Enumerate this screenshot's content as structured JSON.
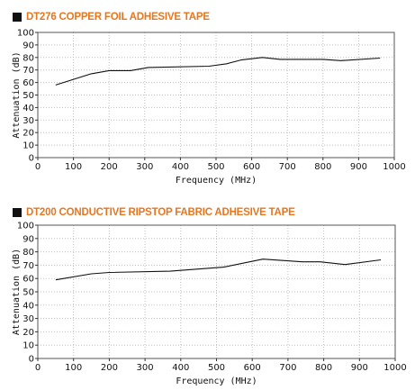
{
  "chart_data": [
    {
      "type": "line",
      "title": "DT276 COPPER FOIL ADHESIVE TAPE",
      "xlabel": "Frequency (MHz)",
      "ylabel": "Attenuation (dB)",
      "xlim": [
        0,
        1000
      ],
      "ylim": [
        0,
        100
      ],
      "xticks": [
        0,
        100,
        200,
        300,
        400,
        500,
        600,
        700,
        800,
        900,
        1000
      ],
      "yticks": [
        0,
        10,
        20,
        30,
        40,
        50,
        60,
        70,
        80,
        90,
        100
      ],
      "grid": true,
      "series": [
        {
          "x": [
            50,
            150,
            200,
            260,
            310,
            480,
            530,
            570,
            630,
            680,
            730,
            800,
            850,
            960
          ],
          "y": [
            58,
            67,
            69.5,
            69.5,
            72,
            73,
            75,
            78,
            80,
            78.5,
            78.5,
            78.5,
            77.5,
            79.5
          ]
        }
      ]
    },
    {
      "type": "line",
      "title": "DT200 CONDUCTIVE RIPSTOP FABRIC ADHESIVE TAPE",
      "xlabel": "Frequency (MHz)",
      "ylabel": "Attenuation (dB)",
      "xlim": [
        0,
        1000
      ],
      "ylim": [
        0,
        100
      ],
      "xticks": [
        0,
        100,
        200,
        300,
        400,
        500,
        600,
        700,
        800,
        900,
        1000
      ],
      "yticks": [
        0,
        10,
        20,
        30,
        40,
        50,
        60,
        70,
        80,
        90,
        100
      ],
      "grid": true,
      "series": [
        {
          "x": [
            50,
            150,
            200,
            370,
            470,
            520,
            630,
            740,
            790,
            860,
            960
          ],
          "y": [
            59,
            63.5,
            64.5,
            65.5,
            67.5,
            68.5,
            74.5,
            72.5,
            72.5,
            70.5,
            74
          ]
        }
      ]
    }
  ]
}
